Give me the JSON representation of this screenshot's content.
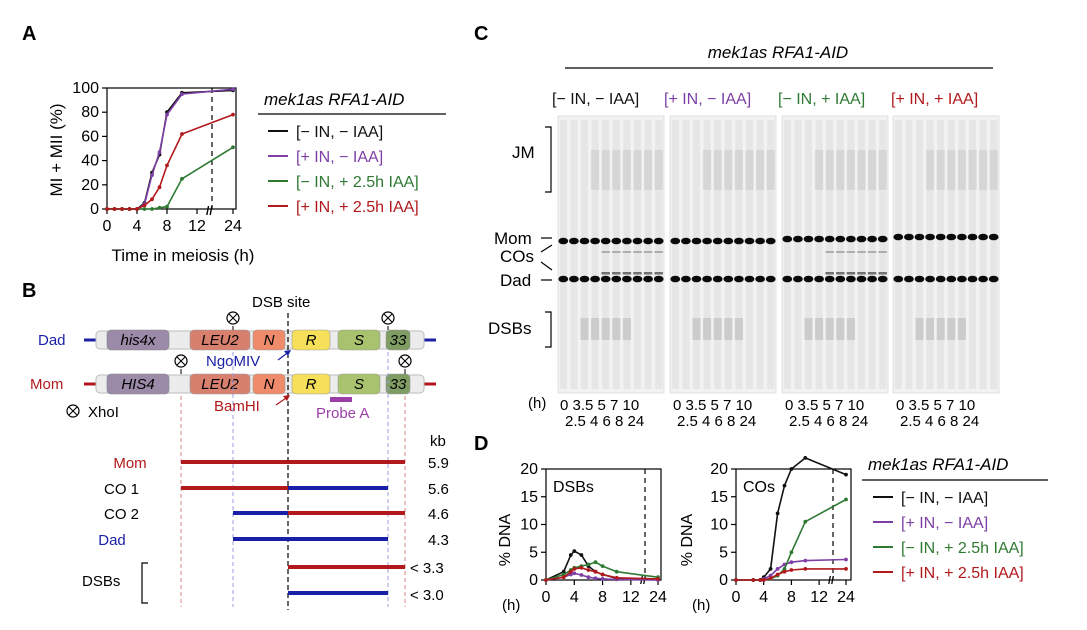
{
  "colors": {
    "black": "#111111",
    "purple": "#7d3fa6",
    "green": "#2f7a33",
    "red": "#b2191c",
    "blue": "#1a1fa8",
    "his": "#9b8aa8",
    "leu": "#d8806e",
    "n": "#ef8a6a",
    "r": "#f6e05a",
    "s": "#a9c26e",
    "t33": "#7f9c62",
    "probe": "#9b3fa6"
  },
  "panel_labels": {
    "a": "A",
    "b": "B",
    "c": "C",
    "d": "D"
  },
  "genotype": "mek1as RFA1-AID",
  "legend_a": [
    "[− IN, − IAA]",
    "[+ IN, − IAA]",
    "[− IN, + 2.5h IAA]",
    "[+ IN, + 2.5h IAA]"
  ],
  "legend_d": [
    "[− IN, − IAA]",
    "[+ IN, − IAA]",
    "[− IN, + 2.5h IAA]",
    "[+ IN, + 2.5h IAA]"
  ],
  "panel_b": {
    "dsb_site": "DSB site",
    "dad": "Dad",
    "mom": "Mom",
    "dad_genes": [
      "his4x",
      "LEU2",
      "N",
      "R",
      "S",
      "33"
    ],
    "mom_genes": [
      "HIS4",
      "LEU2",
      "N",
      "R",
      "S",
      "33"
    ],
    "ngomiv": "NgoMIV",
    "bamhi": "BamHI",
    "probe": "Probe A",
    "xhoi": "XhoI",
    "kb": "kb",
    "fragments": [
      {
        "label": "Mom",
        "kb": "5.9"
      },
      {
        "label": "CO 1",
        "kb": "5.6"
      },
      {
        "label": "CO 2",
        "kb": "4.6"
      },
      {
        "label": "Dad",
        "kb": "4.3"
      },
      {
        "label": "",
        "kb": "< 3.3"
      },
      {
        "label": "",
        "kb": "< 3.0"
      }
    ],
    "dsbs": "DSBs"
  },
  "panel_c": {
    "lanes": [
      "[− IN, − IAA]",
      "[+ IN, − IAA]",
      "[− IN, + IAA]",
      "[+ IN, + IAA]"
    ],
    "labels": {
      "jm": "JM",
      "mom": "Mom",
      "cos": "COs",
      "dad": "Dad",
      "dsbs": "DSBs",
      "h": "(h)"
    },
    "time_row1": "0 3.5 5 7 10",
    "time_row2": "2.5 4 6 8 24"
  },
  "chart_data": [
    {
      "type": "line",
      "panel": "A",
      "xlabel": "Time in meiosis (h)",
      "ylabel": "MI + MII (%)",
      "ylim": [
        0,
        100
      ],
      "x_ticks": [
        "0",
        "4",
        "8",
        "12",
        "24"
      ],
      "y_ticks": [
        "0",
        "20",
        "40",
        "60",
        "80",
        "100"
      ],
      "x": [
        0,
        1,
        2,
        3,
        4,
        5,
        6,
        7,
        8,
        10,
        24
      ],
      "series": [
        {
          "name": "[− IN, − IAA]",
          "color": "#111111",
          "values": [
            0,
            0,
            0,
            0,
            0,
            5,
            30,
            45,
            80,
            96,
            98
          ]
        },
        {
          "name": "[+ IN, − IAA]",
          "color": "#7d3fa6",
          "values": [
            0,
            0,
            0,
            0,
            0,
            4,
            28,
            47,
            78,
            95,
            99
          ]
        },
        {
          "name": "[− IN, + 2.5h IAA]",
          "color": "#2f7a33",
          "values": [
            0,
            0,
            0,
            0,
            0,
            0,
            0,
            1,
            2,
            25,
            51
          ]
        },
        {
          "name": "[+ IN, + 2.5h IAA]",
          "color": "#b2191c",
          "values": [
            0,
            0,
            0,
            0,
            0,
            3,
            8,
            18,
            36,
            62,
            78
          ]
        }
      ]
    },
    {
      "type": "line",
      "panel": "D",
      "title": "DSBs",
      "ylabel": "% DNA",
      "xlabel": "(h)",
      "ylim": [
        0,
        20
      ],
      "x_ticks": [
        "0",
        "4",
        "8",
        "12",
        "24"
      ],
      "y_ticks": [
        "0",
        "5",
        "10",
        "15",
        "20"
      ],
      "x": [
        0,
        2.5,
        3.5,
        4,
        5,
        6,
        7,
        8,
        10,
        24
      ],
      "series": [
        {
          "name": "[− IN, − IAA]",
          "color": "#111111",
          "values": [
            0,
            1.5,
            4.5,
            5.2,
            4.5,
            2.5,
            1.5,
            1.0,
            0.3,
            0.1
          ]
        },
        {
          "name": "[+ IN, − IAA]",
          "color": "#7d3fa6",
          "values": [
            0,
            0.5,
            1.0,
            1.2,
            0.9,
            0.5,
            0.3,
            0.2,
            0.1,
            0
          ]
        },
        {
          "name": "[− IN, + 2.5h IAA]",
          "color": "#2f7a33",
          "values": [
            0,
            1.0,
            1.8,
            2.2,
            2.5,
            2.8,
            3.2,
            2.5,
            1.5,
            0.5
          ]
        },
        {
          "name": "[+ IN, + 2.5h IAA]",
          "color": "#b2191c",
          "values": [
            0,
            0.5,
            1.5,
            2.0,
            2.2,
            1.8,
            1.5,
            1.0,
            0.4,
            0.2
          ]
        }
      ]
    },
    {
      "type": "line",
      "panel": "D",
      "title": "COs",
      "ylabel": "% DNA",
      "xlabel": "(h)",
      "ylim": [
        0,
        20
      ],
      "x_ticks": [
        "0",
        "4",
        "8",
        "12",
        "24"
      ],
      "y_ticks": [
        "0",
        "5",
        "10",
        "15",
        "20"
      ],
      "x": [
        0,
        2.5,
        3.5,
        4,
        5,
        6,
        7,
        8,
        10,
        24
      ],
      "series": [
        {
          "name": "[− IN, − IAA]",
          "color": "#111111",
          "values": [
            0,
            0,
            0,
            0.5,
            2,
            12,
            17,
            20,
            22,
            19
          ]
        },
        {
          "name": "[+ IN, − IAA]",
          "color": "#7d3fa6",
          "values": [
            0,
            0,
            0,
            0.2,
            0.8,
            2.0,
            2.8,
            3.2,
            3.5,
            3.7
          ]
        },
        {
          "name": "[− IN, + 2.5h IAA]",
          "color": "#2f7a33",
          "values": [
            0,
            0,
            0,
            0,
            0.2,
            0.8,
            2.0,
            5.0,
            10.5,
            14.5
          ]
        },
        {
          "name": "[+ IN, + 2.5h IAA]",
          "color": "#b2191c",
          "values": [
            0,
            0,
            0,
            0,
            0.3,
            1.0,
            1.5,
            1.8,
            2.0,
            2.0
          ]
        }
      ]
    }
  ]
}
